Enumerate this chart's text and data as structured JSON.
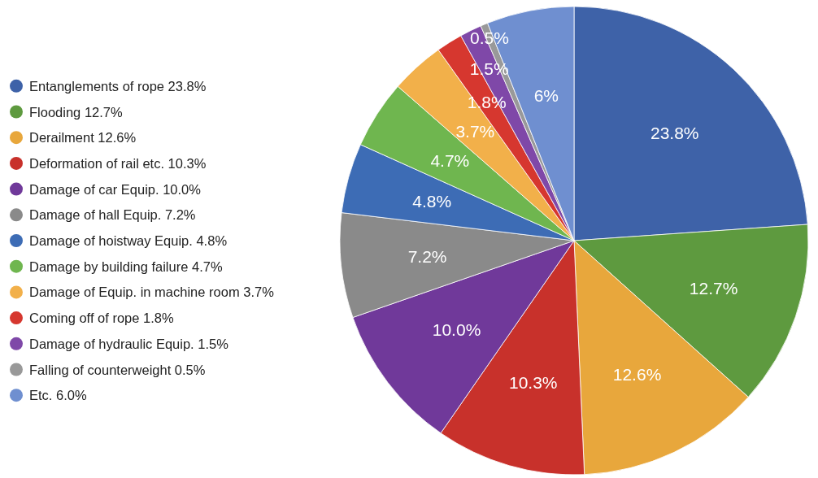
{
  "chart_data": {
    "type": "pie",
    "categories": [
      "Entanglements of rope 23.8%",
      "Flooding 12.7%",
      "Derailment 12.6%",
      "Deformation of rail etc. 10.3%",
      "Damage of car Equip. 10.0%",
      "Damage of hall Equip. 7.2%",
      "Damage of hoistway Equip. 4.8%",
      "Damage by building failure 4.7%",
      "Damage of Equip. in machine room 3.7%",
      "Coming off of rope 1.8%",
      "Damage of hydraulic Equip. 1.5%",
      "Falling of counterweight 0.5%",
      "Etc. 6.0%"
    ],
    "values": [
      23.8,
      12.7,
      12.6,
      10.3,
      10.0,
      7.2,
      4.8,
      4.7,
      3.7,
      1.8,
      1.5,
      0.5,
      6.0
    ],
    "value_labels": [
      "23.8%",
      "12.7%",
      "12.6%",
      "10.3%",
      "10.0%",
      "7.2%",
      "4.8%",
      "4.7%",
      "3.7%",
      "1.8%",
      "1.5%",
      "0.5%",
      "6%"
    ],
    "colors": [
      "#3e62a8",
      "#5e9a3f",
      "#e8a73c",
      "#c8312b",
      "#70399a",
      "#8a8a8a",
      "#3d6cb5",
      "#6fb64f",
      "#f2b04a",
      "#d6372f",
      "#7f48a8",
      "#999999",
      "#6f8fd0"
    ],
    "legend": "left"
  }
}
